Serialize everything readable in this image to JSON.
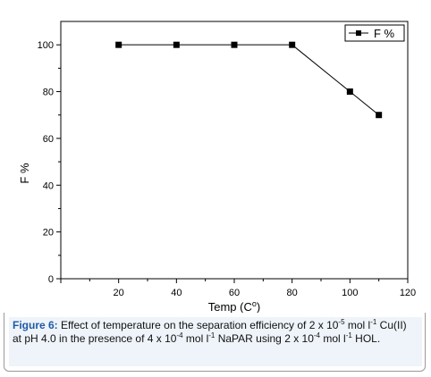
{
  "chart_data": {
    "type": "line",
    "x": [
      20,
      40,
      60,
      80,
      100,
      110
    ],
    "series": [
      {
        "name": "F %",
        "values": [
          100,
          100,
          100,
          100,
          80,
          70
        ]
      }
    ],
    "xlabel_main": "Temp (C",
    "xlabel_sup": "o",
    "xlabel_close": ")",
    "ylabel": "F %",
    "xlim": [
      0,
      120
    ],
    "ylim": [
      0,
      110
    ],
    "xticks": [
      0,
      20,
      40,
      60,
      80,
      100,
      120
    ],
    "xtick_labels": [
      "",
      "20",
      "40",
      "60",
      "80",
      "100",
      "120"
    ],
    "yticks": [
      0,
      20,
      40,
      60,
      80,
      100
    ],
    "ytick_labels": [
      "0",
      "20",
      "40",
      "60",
      "80",
      "100"
    ],
    "legend_position": "top-right",
    "marker": "square",
    "grid": false
  },
  "caption": {
    "label": "Figure 6:",
    "t1": " Effect of temperature on the separation efficiency of 2 x 10",
    "s1": "-5",
    "t2": " mol l",
    "s2": "-1",
    "t3": " Cu(II) at pH 4.0 in the presence of 4 x 10",
    "s3": "-4",
    "t4": " mol l",
    "s4": "-1",
    "t5": " NaPAR using 2 x 10",
    "s5": "-4",
    "t6": " mol l",
    "s6": "-1",
    "t7": " HOL."
  }
}
